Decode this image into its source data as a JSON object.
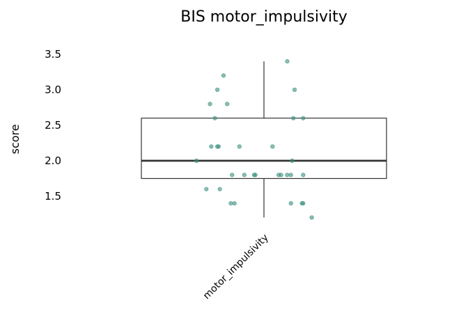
{
  "chart_data": {
    "type": "box",
    "title": "BIS motor_impulsivity",
    "xlabel": "",
    "ylabel": "score",
    "categories": [
      "motor_impulsivity"
    ],
    "yticks": [
      "1.5",
      "2.0",
      "2.5",
      "3.0",
      "3.5"
    ],
    "ylim": [
      1.2,
      3.5
    ],
    "grid": false,
    "point_color": "#3a9080",
    "box": {
      "whisker_low": 1.2,
      "q1": 1.75,
      "median": 2.0,
      "q3": 2.6,
      "whisker_high": 3.4
    },
    "points": [
      {
        "offset": -0.55,
        "y": 2.0
      },
      {
        "offset": -0.47,
        "y": 1.6
      },
      {
        "offset": -0.43,
        "y": 2.2
      },
      {
        "offset": -0.44,
        "y": 2.8
      },
      {
        "offset": -0.38,
        "y": 2.2
      },
      {
        "offset": -0.37,
        "y": 2.2
      },
      {
        "offset": -0.38,
        "y": 3.0
      },
      {
        "offset": -0.4,
        "y": 2.6
      },
      {
        "offset": -0.36,
        "y": 1.6
      },
      {
        "offset": -0.33,
        "y": 3.2
      },
      {
        "offset": -0.3,
        "y": 2.8
      },
      {
        "offset": -0.27,
        "y": 1.4
      },
      {
        "offset": -0.26,
        "y": 1.8
      },
      {
        "offset": -0.24,
        "y": 1.4
      },
      {
        "offset": -0.2,
        "y": 2.2
      },
      {
        "offset": -0.16,
        "y": 1.8
      },
      {
        "offset": -0.08,
        "y": 1.8
      },
      {
        "offset": -0.07,
        "y": 1.8
      },
      {
        "offset": 0.07,
        "y": 2.2
      },
      {
        "offset": 0.12,
        "y": 1.8
      },
      {
        "offset": 0.14,
        "y": 1.8
      },
      {
        "offset": 0.19,
        "y": 3.4
      },
      {
        "offset": 0.19,
        "y": 1.8
      },
      {
        "offset": 0.22,
        "y": 1.8
      },
      {
        "offset": 0.22,
        "y": 1.4
      },
      {
        "offset": 0.23,
        "y": 2.0
      },
      {
        "offset": 0.24,
        "y": 2.6
      },
      {
        "offset": 0.25,
        "y": 3.0
      },
      {
        "offset": 0.31,
        "y": 1.4
      },
      {
        "offset": 0.32,
        "y": 1.4
      },
      {
        "offset": 0.32,
        "y": 2.6
      },
      {
        "offset": 0.32,
        "y": 1.8
      },
      {
        "offset": 0.39,
        "y": 1.2
      }
    ]
  }
}
